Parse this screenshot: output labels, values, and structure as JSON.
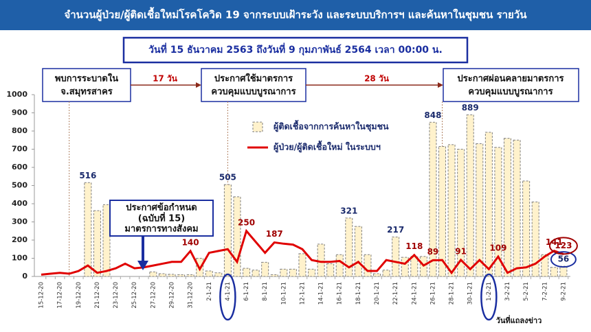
{
  "chart_data": {
    "type": "combo",
    "title": "จำนวนผู้ป่วย/ผู้ติดเชื้อใหม่โรคโควิด 19 จากระบบเฝ้าระวัง และระบบบริการฯ และค้นหาในชุมชน รายวัน",
    "subtitle": "วันที่ 15 ธันวาคม 2563 ถึงวันที่ 9 กุมภาพันธ์ 2564 เวลา 00:00 น.",
    "annotations": [
      "พบการระบาดใน",
      "จ.สมุทรสาคร",
      "17 วัน",
      "ประกาศใช้มาตรการ",
      "ควบคุมแบบบูรณาการ",
      "28 วัน",
      "ประกาศผ่อนคลายมาตรการ",
      "ควบคุมแบบบูรณาการ",
      "ประกาศข้อกำหนด",
      "(ฉบับที่ 15)",
      "มาตรการทางสังคม",
      "วันที่แถลงข่าว"
    ],
    "categories": [
      "15-12-20",
      null,
      "17-12-20",
      null,
      "19-12-20",
      null,
      "21-12-20",
      null,
      "23-12-20",
      null,
      "25-12-20",
      null,
      "27-12-20",
      null,
      "29-12-20",
      null,
      "31-12-20",
      null,
      "2-1-21",
      null,
      "4-1-21",
      null,
      "6-1-21",
      null,
      "8-1-21",
      null,
      "10-1-21",
      null,
      "12-1-21",
      null,
      "14-1-21",
      null,
      "16-1-21",
      null,
      "18-1-21",
      null,
      "20-1-21",
      null,
      "22-1-21",
      null,
      "24-1-21",
      null,
      "26-1-21",
      null,
      "28-1-21",
      null,
      "30-1-21",
      null,
      "1-2-21",
      null,
      "3-2-21",
      null,
      "5-2-21",
      null,
      "7-2-21",
      null,
      "9-2-21"
    ],
    "series": [
      {
        "name": "ผู้ติดเชื้อจากการค้นหาในชุมชน",
        "type": "bar",
        "color": "#fff2cc",
        "values": [
          0,
          0,
          0,
          0,
          0,
          516,
          362,
          395,
          0,
          0,
          0,
          0,
          25,
          15,
          12,
          10,
          10,
          100,
          30,
          20,
          505,
          438,
          45,
          35,
          78,
          10,
          40,
          40,
          125,
          40,
          178,
          70,
          120,
          321,
          275,
          120,
          15,
          35,
          217,
          105,
          110,
          110,
          848,
          715,
          725,
          700,
          889,
          730,
          793,
          710,
          760,
          750,
          525,
          410,
          120,
          50,
          56
        ],
        "value_labels": [
          null,
          null,
          null,
          null,
          null,
          "516",
          null,
          null,
          null,
          null,
          null,
          null,
          null,
          null,
          null,
          null,
          null,
          null,
          null,
          null,
          "505",
          null,
          null,
          null,
          null,
          null,
          null,
          null,
          null,
          null,
          null,
          null,
          null,
          "321",
          null,
          null,
          null,
          null,
          "217",
          null,
          null,
          null,
          "848",
          null,
          null,
          null,
          "889",
          null,
          null,
          null,
          null,
          null,
          null,
          null,
          null,
          null,
          "56"
        ]
      },
      {
        "name": "ผู้ป่วย/ผู้ติดเชื้อใหม่ ในระบบฯ",
        "type": "line",
        "color": "#e00000",
        "values": [
          10,
          15,
          20,
          15,
          30,
          60,
          20,
          30,
          45,
          70,
          45,
          50,
          60,
          70,
          80,
          80,
          140,
          40,
          130,
          140,
          150,
          80,
          250,
          190,
          130,
          187,
          180,
          175,
          150,
          90,
          80,
          80,
          85,
          50,
          80,
          30,
          30,
          90,
          80,
          70,
          118,
          60,
          89,
          90,
          20,
          91,
          40,
          90,
          40,
          109,
          20,
          45,
          50,
          70,
          110,
          141,
          123
        ],
        "value_labels": [
          null,
          null,
          null,
          null,
          null,
          null,
          null,
          null,
          null,
          null,
          null,
          null,
          null,
          null,
          null,
          null,
          "140",
          null,
          null,
          null,
          null,
          null,
          "250",
          null,
          null,
          "187",
          null,
          null,
          null,
          null,
          null,
          null,
          null,
          null,
          null,
          null,
          null,
          null,
          null,
          null,
          "118",
          null,
          "89",
          null,
          null,
          "91",
          null,
          null,
          null,
          "109",
          null,
          null,
          null,
          null,
          null,
          "141",
          "123"
        ]
      }
    ],
    "ylim": [
      0,
      1000
    ],
    "yticks": [
      0,
      100,
      200,
      300,
      400,
      500,
      600,
      700,
      800,
      900,
      1000
    ]
  }
}
